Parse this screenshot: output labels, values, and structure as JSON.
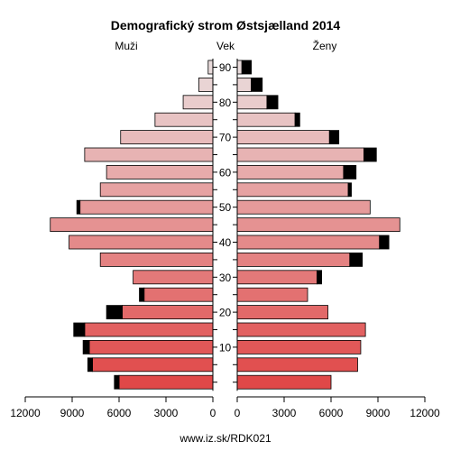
{
  "chart_data": {
    "type": "bar",
    "title": "Demografický strom Østsjælland 2014",
    "labels": {
      "left": "Muži",
      "center": "Vek",
      "right": "Ženy"
    },
    "footer": "www.iz.sk/RDK021",
    "x_axis_ticks": [
      12000,
      9000,
      6000,
      3000,
      0
    ],
    "xlim": [
      0,
      12000
    ],
    "age_ticks": [
      90,
      80,
      70,
      60,
      50,
      40,
      30,
      20,
      10
    ],
    "categories": [
      "0-4",
      "5-9",
      "10-14",
      "15-19",
      "20-24",
      "25-29",
      "30-34",
      "35-39",
      "40-44",
      "45-49",
      "50-54",
      "55-59",
      "60-64",
      "65-69",
      "70-74",
      "75-79",
      "80-84",
      "85-89",
      "90+"
    ],
    "series": [
      {
        "side": "left",
        "values": [
          6000,
          7700,
          7900,
          8200,
          5800,
          4400,
          5100,
          7200,
          9200,
          10400,
          8500,
          7200,
          6800,
          8200,
          5900,
          3700,
          1900,
          900,
          300
        ]
      },
      {
        "side": "left",
        "values": [
          300,
          300,
          400,
          700,
          1000,
          300,
          0,
          0,
          0,
          0,
          200,
          0,
          0,
          0,
          0,
          0,
          0,
          0,
          0
        ]
      },
      {
        "side": "right",
        "values": [
          6000,
          7700,
          7900,
          8200,
          5800,
          4500,
          5100,
          7200,
          9100,
          10400,
          8500,
          7100,
          6800,
          8100,
          5900,
          3700,
          1900,
          900,
          300
        ]
      },
      {
        "side": "right",
        "values": [
          0,
          0,
          0,
          0,
          0,
          0,
          300,
          800,
          600,
          0,
          0,
          200,
          800,
          800,
          600,
          300,
          700,
          700,
          600
        ]
      }
    ],
    "colors": {
      "youngest": "#e04848",
      "oldest": "#eadcdc",
      "excess": "#000000"
    },
    "grid": false
  }
}
